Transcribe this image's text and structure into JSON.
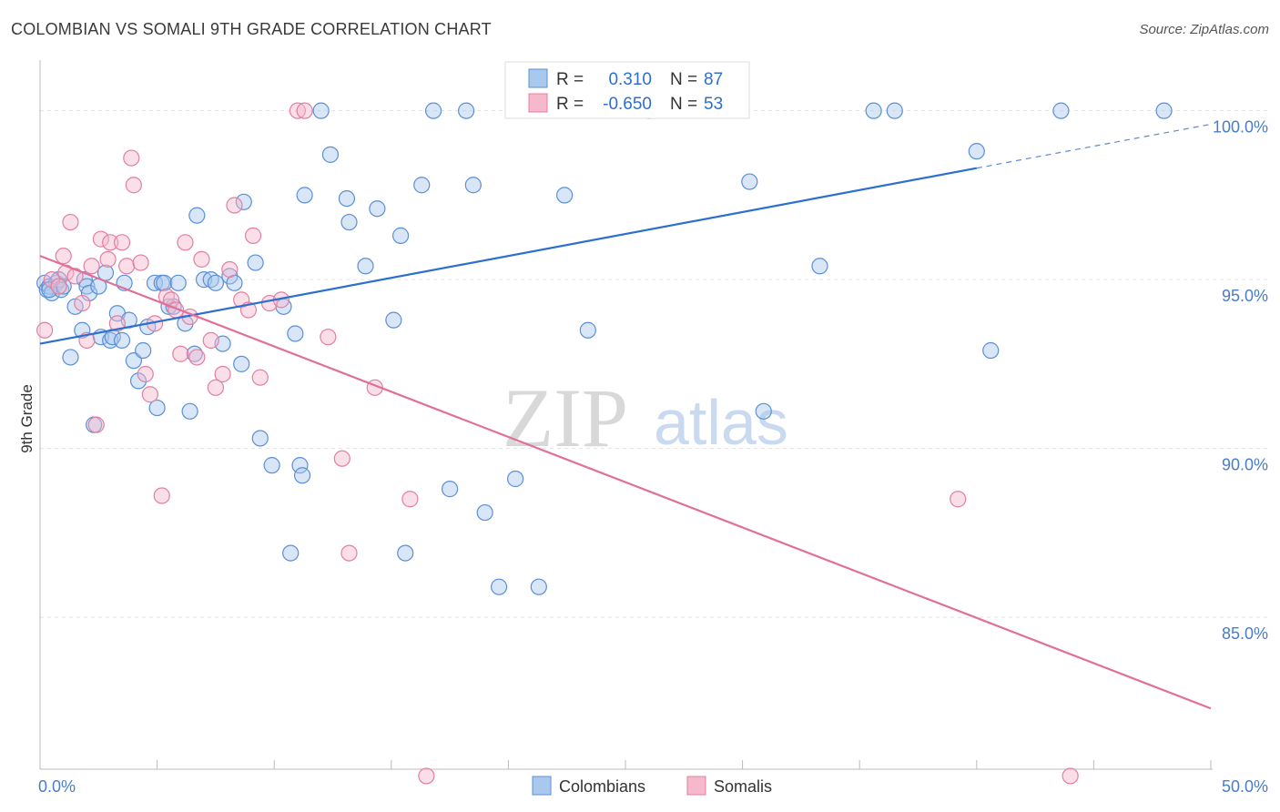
{
  "header": {
    "title": "COLOMBIAN VS SOMALI 9TH GRADE CORRELATION CHART",
    "source": "Source: ZipAtlas.com"
  },
  "watermark": {
    "zip": "ZIP",
    "atlas": "atlas"
  },
  "chart_data": {
    "type": "scatter",
    "ylabel": "9th Grade",
    "xlim": [
      0,
      50
    ],
    "ylim": [
      80.5,
      101.5
    ],
    "x_tick_labels": [
      {
        "value": 0,
        "label": "0.0%"
      },
      {
        "value": 50,
        "label": "50.0%"
      }
    ],
    "y_tick_labels": [
      {
        "value": 100,
        "label": "100.0%"
      },
      {
        "value": 95,
        "label": "95.0%"
      },
      {
        "value": 90,
        "label": "90.0%"
      },
      {
        "value": 85,
        "label": "85.0%"
      }
    ],
    "grid": true,
    "legend": {
      "placement": "top-center",
      "entries": [
        {
          "r_label": "R =",
          "r_value": "0.310",
          "n_label": "N =",
          "n_value": "87"
        },
        {
          "r_label": "R =",
          "r_value": "-0.650",
          "n_label": "N =",
          "n_value": "53"
        }
      ]
    },
    "bottom_legend": [
      "Colombians",
      "Somalis"
    ],
    "colors": {
      "colombians_fill": "#a9c8ee",
      "colombians_stroke": "#5b8fd6",
      "colombians_line": "#2d6fd0",
      "somalis_fill": "#f6b8cb",
      "somalis_stroke": "#e27fa0",
      "somalis_line": "#e0709a"
    },
    "series": [
      {
        "name": "Colombians",
        "trend": {
          "x0": 0,
          "y0": 93.1,
          "x1": 40,
          "y1": 98.3,
          "dash_to_x": 50,
          "dash_to_y": 99.6
        },
        "points": [
          [
            0.2,
            94.9
          ],
          [
            0.3,
            94.7
          ],
          [
            0.4,
            94.8
          ],
          [
            0.5,
            94.6
          ],
          [
            0.7,
            94.9
          ],
          [
            0.8,
            95.0
          ],
          [
            0.9,
            94.7
          ],
          [
            1.0,
            94.8
          ],
          [
            1.3,
            92.7
          ],
          [
            1.5,
            94.2
          ],
          [
            1.8,
            93.5
          ],
          [
            1.9,
            95.0
          ],
          [
            2.0,
            94.8
          ],
          [
            2.1,
            94.6
          ],
          [
            2.3,
            90.7
          ],
          [
            2.5,
            94.8
          ],
          [
            2.6,
            93.3
          ],
          [
            2.8,
            95.2
          ],
          [
            3.0,
            93.2
          ],
          [
            3.1,
            93.3
          ],
          [
            3.3,
            94.0
          ],
          [
            3.5,
            93.2
          ],
          [
            3.6,
            94.9
          ],
          [
            3.8,
            93.8
          ],
          [
            4.0,
            92.6
          ],
          [
            4.2,
            92.0
          ],
          [
            4.4,
            92.9
          ],
          [
            4.6,
            93.6
          ],
          [
            4.9,
            94.9
          ],
          [
            5.0,
            91.2
          ],
          [
            5.2,
            94.9
          ],
          [
            5.3,
            94.9
          ],
          [
            5.5,
            94.2
          ],
          [
            5.7,
            94.2
          ],
          [
            5.9,
            94.9
          ],
          [
            6.2,
            93.7
          ],
          [
            6.4,
            91.1
          ],
          [
            6.6,
            92.8
          ],
          [
            7.0,
            95.0
          ],
          [
            7.3,
            95.0
          ],
          [
            7.5,
            94.9
          ],
          [
            7.8,
            93.1
          ],
          [
            8.1,
            95.1
          ],
          [
            8.3,
            94.9
          ],
          [
            8.6,
            92.5
          ],
          [
            9.2,
            95.5
          ],
          [
            9.4,
            90.3
          ],
          [
            9.9,
            89.5
          ],
          [
            10.4,
            94.2
          ],
          [
            10.7,
            86.9
          ],
          [
            10.9,
            93.4
          ],
          [
            11.1,
            89.5
          ],
          [
            11.2,
            89.2
          ],
          [
            11.3,
            97.5
          ],
          [
            12.0,
            100.0
          ],
          [
            12.4,
            98.7
          ],
          [
            13.1,
            97.4
          ],
          [
            13.2,
            96.7
          ],
          [
            13.9,
            95.4
          ],
          [
            14.4,
            97.1
          ],
          [
            15.1,
            93.8
          ],
          [
            15.4,
            96.3
          ],
          [
            15.6,
            86.9
          ],
          [
            16.3,
            97.8
          ],
          [
            17.5,
            88.8
          ],
          [
            18.2,
            100.0
          ],
          [
            18.5,
            97.8
          ],
          [
            19.0,
            88.1
          ],
          [
            19.6,
            85.9
          ],
          [
            20.3,
            89.1
          ],
          [
            21.3,
            85.9
          ],
          [
            22.4,
            97.5
          ],
          [
            23.4,
            93.5
          ],
          [
            26.0,
            100.0
          ],
          [
            30.3,
            97.9
          ],
          [
            30.9,
            91.1
          ],
          [
            33.3,
            95.4
          ],
          [
            35.6,
            100.0
          ],
          [
            36.5,
            100.0
          ],
          [
            40.0,
            98.8
          ],
          [
            40.6,
            92.9
          ],
          [
            43.6,
            100.0
          ],
          [
            48.0,
            100.0
          ],
          [
            0.4,
            94.7
          ],
          [
            8.7,
            97.3
          ],
          [
            6.7,
            96.9
          ],
          [
            16.8,
            100.0
          ]
        ]
      },
      {
        "name": "Somalis",
        "trend": {
          "x0": 0,
          "y0": 95.7,
          "x1": 50,
          "y1": 82.3
        },
        "points": [
          [
            0.2,
            93.5
          ],
          [
            0.5,
            95.0
          ],
          [
            0.8,
            94.8
          ],
          [
            1.0,
            95.7
          ],
          [
            1.1,
            95.2
          ],
          [
            1.3,
            96.7
          ],
          [
            1.5,
            95.1
          ],
          [
            1.8,
            94.3
          ],
          [
            2.0,
            93.2
          ],
          [
            2.2,
            95.4
          ],
          [
            2.4,
            90.7
          ],
          [
            2.6,
            96.2
          ],
          [
            2.9,
            95.6
          ],
          [
            3.0,
            96.1
          ],
          [
            3.3,
            93.7
          ],
          [
            3.5,
            96.1
          ],
          [
            3.7,
            95.4
          ],
          [
            3.9,
            98.6
          ],
          [
            4.0,
            97.8
          ],
          [
            4.3,
            95.5
          ],
          [
            4.5,
            92.2
          ],
          [
            4.7,
            91.6
          ],
          [
            4.9,
            93.7
          ],
          [
            5.2,
            88.6
          ],
          [
            5.4,
            94.5
          ],
          [
            5.6,
            94.4
          ],
          [
            5.8,
            94.1
          ],
          [
            6.0,
            92.8
          ],
          [
            6.2,
            96.1
          ],
          [
            6.4,
            93.9
          ],
          [
            6.7,
            92.7
          ],
          [
            6.9,
            95.6
          ],
          [
            7.3,
            93.2
          ],
          [
            7.5,
            91.8
          ],
          [
            7.8,
            92.2
          ],
          [
            8.1,
            95.3
          ],
          [
            8.3,
            97.2
          ],
          [
            8.6,
            94.4
          ],
          [
            8.9,
            94.1
          ],
          [
            9.1,
            96.3
          ],
          [
            9.4,
            92.1
          ],
          [
            9.8,
            94.3
          ],
          [
            10.3,
            94.4
          ],
          [
            11.0,
            100.0
          ],
          [
            11.3,
            100.0
          ],
          [
            12.3,
            93.3
          ],
          [
            12.9,
            89.7
          ],
          [
            13.2,
            86.9
          ],
          [
            14.3,
            91.8
          ],
          [
            15.8,
            88.5
          ],
          [
            16.5,
            80.3
          ],
          [
            39.2,
            88.5
          ],
          [
            44.0,
            80.3
          ]
        ]
      }
    ]
  }
}
